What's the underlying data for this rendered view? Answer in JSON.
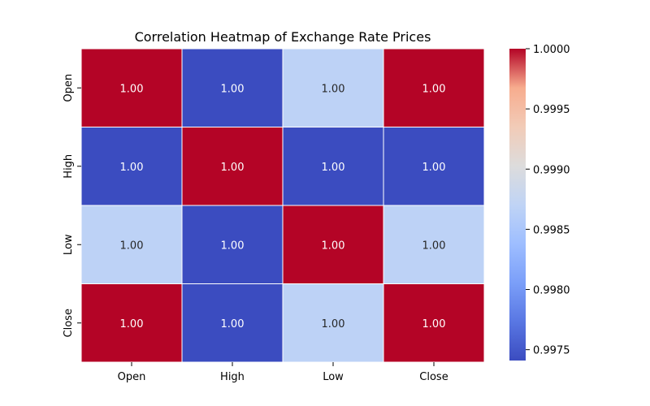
{
  "chart_data": {
    "type": "heatmap",
    "title": "Correlation Heatmap of Exchange Rate Prices",
    "x_categories": [
      "Open",
      "High",
      "Low",
      "Close"
    ],
    "y_categories": [
      "Open",
      "High",
      "Low",
      "Close"
    ],
    "values": [
      [
        1.0,
        0.99741,
        0.99868,
        1.0
      ],
      [
        0.99741,
        1.0,
        0.99741,
        0.99741
      ],
      [
        0.99868,
        0.99741,
        1.0,
        0.99868
      ],
      [
        1.0,
        0.99741,
        0.99868,
        1.0
      ]
    ],
    "cell_labels": [
      [
        "1.00",
        "1.00",
        "1.00",
        "1.00"
      ],
      [
        "1.00",
        "1.00",
        "1.00",
        "1.00"
      ],
      [
        "1.00",
        "1.00",
        "1.00",
        "1.00"
      ],
      [
        "1.00",
        "1.00",
        "1.00",
        "1.00"
      ]
    ],
    "colormap": "coolwarm",
    "color_range": [
      0.99741,
      1.0
    ],
    "colorbar_ticks": [
      "1.0000",
      "0.9995",
      "0.9990",
      "0.9985",
      "0.9980",
      "0.9975"
    ],
    "colorbar_tick_values": [
      1.0,
      0.9995,
      0.999,
      0.9985,
      0.998,
      0.9975
    ]
  }
}
